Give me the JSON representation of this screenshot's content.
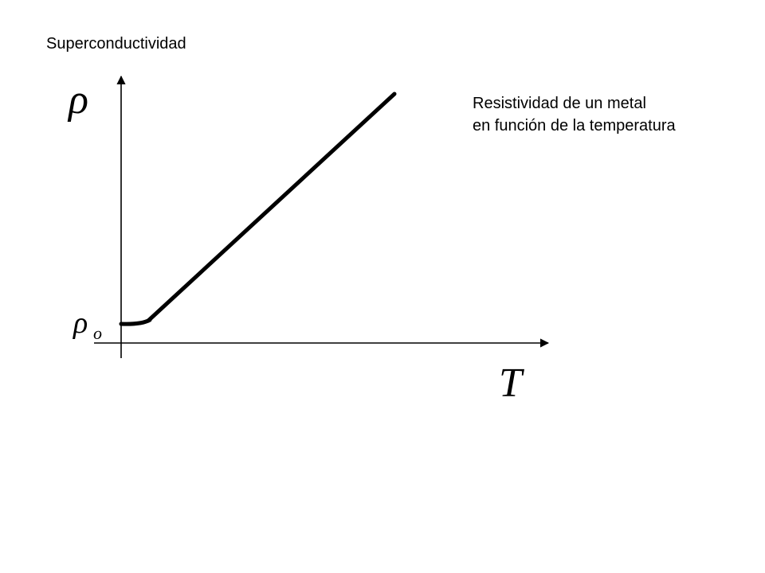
{
  "title": "Superconductividad",
  "caption": {
    "line1": "Resistividad de un metal",
    "line2": "en función de la temperatura"
  },
  "axes": {
    "y_symbol": "ρ",
    "x_symbol": "T",
    "y0_symbol": "ρ",
    "y0_subscript": "o"
  },
  "colors": {
    "ink": "#000000",
    "background": "#ffffff"
  }
}
